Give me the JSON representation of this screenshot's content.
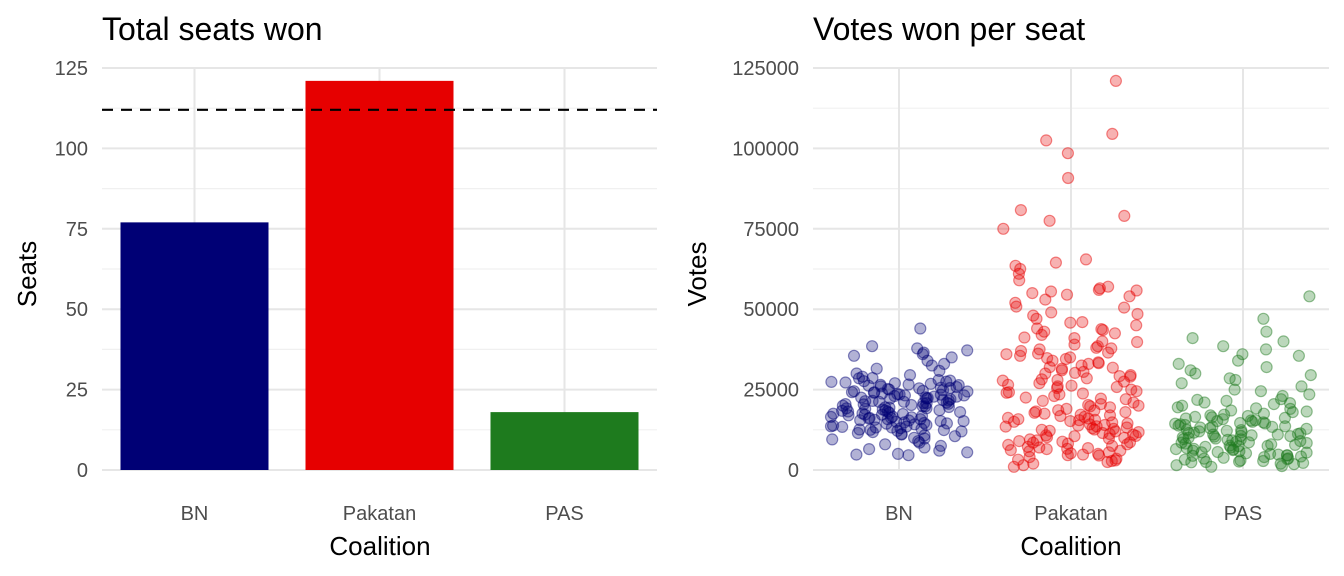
{
  "chart_data": [
    {
      "type": "bar",
      "title": "Total seats won",
      "xlabel": "Coalition",
      "ylabel": "Seats",
      "categories": [
        "BN",
        "Pakatan",
        "PAS"
      ],
      "values": [
        77,
        121,
        18
      ],
      "colors": [
        "#000075",
        "#e60000",
        "#1e7b1e"
      ],
      "ylim": [
        0,
        125
      ],
      "yticks": [
        "0",
        "25",
        "50",
        "75",
        "100",
        "125"
      ],
      "reference_line": {
        "y": 112,
        "style": "dashed",
        "color": "#000000"
      },
      "grid": true,
      "legend": "none"
    },
    {
      "type": "scatter",
      "title": "Votes won per seat",
      "xlabel": "Coalition",
      "ylabel": "Votes",
      "categories": [
        "BN",
        "Pakatan",
        "PAS"
      ],
      "colors": [
        "#000075",
        "#e60000",
        "#1e7b1e"
      ],
      "point_alpha": 0.3,
      "ylim": [
        0,
        125000
      ],
      "yticks": [
        "0",
        "25000",
        "50000",
        "75000",
        "100000",
        "125000"
      ],
      "grid": true,
      "legend": "none",
      "jitter": "horizontal",
      "series": [
        {
          "category": "BN",
          "values": [
            44000,
            38500,
            37800,
            37200,
            36500,
            36000,
            35500,
            35000,
            34000,
            33000,
            32500,
            31500,
            30800,
            30000,
            29500,
            29000,
            28500,
            28000,
            27800,
            27500,
            27200,
            27000,
            26800,
            26500,
            26200,
            26000,
            25800,
            25500,
            25200,
            25000,
            24800,
            24500,
            24200,
            24000,
            23800,
            23500,
            23200,
            23000,
            22800,
            22500,
            22200,
            22000,
            21800,
            21500,
            21200,
            21000,
            20800,
            20500,
            20200,
            20000,
            19800,
            19500,
            19200,
            19000,
            18800,
            18500,
            18200,
            18000,
            17800,
            17500,
            17200,
            17000,
            16800,
            16500,
            16200,
            16000,
            15800,
            15500,
            15200,
            15000,
            14800,
            14500,
            14200,
            14000,
            13800,
            13500,
            13200,
            13000,
            12800,
            12500,
            12200,
            12000,
            11500,
            11000,
            10500,
            10000,
            9500,
            9000,
            8500,
            8000,
            7500,
            7000,
            6500,
            6000,
            5500,
            5000,
            4800,
            4600,
            24600,
            19600,
            15400,
            22600,
            18400,
            26400,
            13400,
            20400,
            16600,
            25600,
            11800,
            21600,
            17600,
            23400,
            14400,
            19400,
            27400,
            15600,
            22400,
            12400,
            18600,
            24400,
            16400,
            20600,
            28600,
            13600,
            21400,
            17400,
            25400,
            10800,
            19800,
            23600,
            15800,
            22800,
            14600,
            18200,
            26600,
            12600,
            20800,
            16200,
            24200,
            9800,
            21200,
            17200,
            27600,
            13200,
            19200,
            23200,
            15200,
            22200,
            11200
          ]
        },
        {
          "category": "Pakatan",
          "values": [
            121000,
            104500,
            102500,
            98500,
            90800,
            80800,
            79000,
            77500,
            75000,
            65500,
            64500,
            63500,
            62500,
            61000,
            59000,
            57000,
            56500,
            56000,
            55500,
            55000,
            54500,
            54000,
            53000,
            52000,
            50500,
            49000,
            48500,
            48000,
            47000,
            46000,
            45000,
            44000,
            43500,
            43000,
            42500,
            42000,
            41000,
            40000,
            39000,
            38500,
            38000,
            37500,
            37000,
            36500,
            36000,
            35500,
            35000,
            34500,
            34000,
            33500,
            33000,
            32500,
            32000,
            31500,
            31000,
            30500,
            30000,
            29500,
            29000,
            28500,
            28000,
            27500,
            27000,
            26500,
            26000,
            25500,
            25000,
            24500,
            24000,
            23500,
            23000,
            22500,
            22000,
            21500,
            21000,
            20500,
            20000,
            19500,
            19000,
            18500,
            18000,
            17500,
            17000,
            16500,
            16000,
            15500,
            15000,
            14500,
            14000,
            13500,
            13000,
            12500,
            12000,
            11500,
            11000,
            10500,
            10000,
            9500,
            9000,
            8500,
            8000,
            7500,
            7000,
            6500,
            6000,
            5500,
            5000,
            4500,
            4000,
            3500,
            3000,
            2500,
            2000,
            1500,
            1000,
            18200,
            12200,
            8200,
            15200,
            6200,
            10200,
            20200,
            13200,
            7200,
            16200,
            9200,
            11200,
            5200,
            14200,
            17200,
            3200,
            12800,
            8800,
            19800,
            6800,
            10800,
            15800,
            4800,
            13800,
            9800,
            16800,
            7800,
            11800,
            2800,
            14800,
            17800,
            5800,
            12600,
            8600,
            18600,
            6600,
            10600,
            15600,
            4600,
            13600,
            30200,
            26200,
            33200,
            22200,
            28200,
            36200,
            24200,
            41200,
            29200,
            45800,
            34800,
            27800,
            50800,
            39800,
            31800,
            23800,
            55800,
            37800,
            43800,
            25800
          ]
        },
        {
          "category": "PAS",
          "values": [
            54000,
            47000,
            43000,
            41000,
            40000,
            38500,
            37500,
            36000,
            35500,
            34000,
            33000,
            32000,
            31000,
            30000,
            29500,
            28500,
            28000,
            27000,
            26000,
            25000,
            24500,
            23500,
            23000,
            22000,
            21500,
            21000,
            20500,
            20000,
            19500,
            19000,
            18500,
            18000,
            17500,
            17000,
            16500,
            16000,
            15500,
            15000,
            14500,
            14000,
            13500,
            13000,
            12500,
            12000,
            11500,
            11000,
            10500,
            10000,
            9500,
            9000,
            8500,
            8000,
            7500,
            7000,
            6500,
            6000,
            5500,
            5000,
            4500,
            4000,
            3500,
            3000,
            2500,
            2000,
            1500,
            1000,
            15200,
            12200,
            9200,
            6200,
            3200,
            14200,
            11200,
            8200,
            5200,
            2200,
            16200,
            13200,
            10200,
            7200,
            4200,
            1200,
            15800,
            12800,
            9800,
            6800,
            3800,
            14800,
            11800,
            8800,
            5800,
            2800,
            16800,
            13800,
            10800,
            7800,
            4800,
            1800,
            17200,
            14600,
            11600,
            8600,
            5600,
            2600,
            13600,
            10600,
            7600,
            4600,
            18200,
            12400,
            9400,
            6400,
            3400,
            15400,
            11400,
            8400,
            5400,
            2400,
            19200,
            13400,
            10400,
            7400,
            4400,
            20800,
            16400,
            9600,
            6600,
            3600,
            21800,
            14400,
            11000
          ]
        }
      ]
    }
  ]
}
